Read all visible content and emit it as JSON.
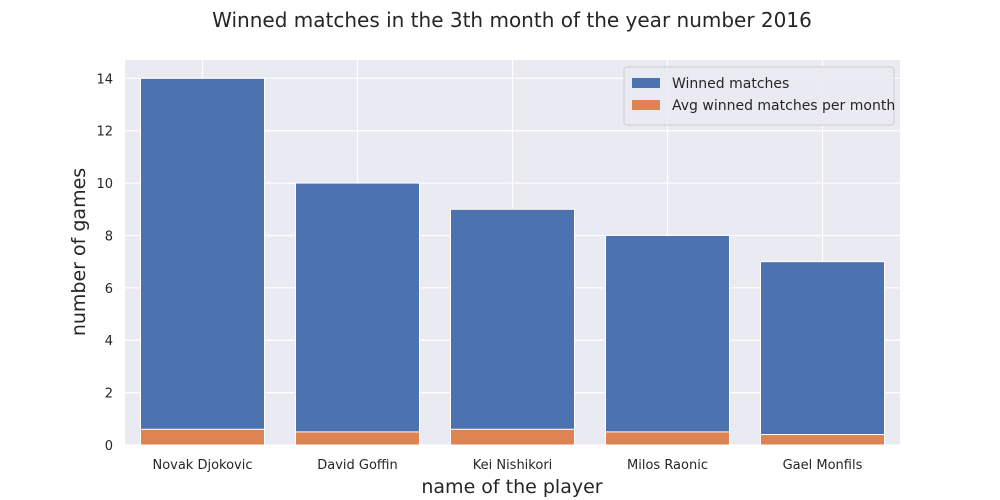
{
  "chart_data": {
    "type": "bar",
    "title": "Winned matches in the 3th month of the year number 2016",
    "xlabel": "name of the player",
    "ylabel": "number of games",
    "categories": [
      "Novak Djokovic",
      "David Goffin",
      "Kei Nishikori",
      "Milos Raonic",
      "Gael Monfils"
    ],
    "series": [
      {
        "name": "Winned matches",
        "values": [
          14,
          10,
          9,
          8,
          7
        ],
        "color": "#4c72b0"
      },
      {
        "name": "Avg winned matches per month",
        "values": [
          0.6,
          0.5,
          0.6,
          0.5,
          0.4
        ],
        "color": "#dd8452"
      }
    ],
    "ylim": [
      0,
      14.7
    ],
    "yticks": [
      "0",
      "2",
      "4",
      "6",
      "8",
      "10",
      "12",
      "14"
    ],
    "grid": true,
    "legend_position": "top-right",
    "background_color": "#eaeaf2",
    "grid_color": "#ffffff"
  }
}
